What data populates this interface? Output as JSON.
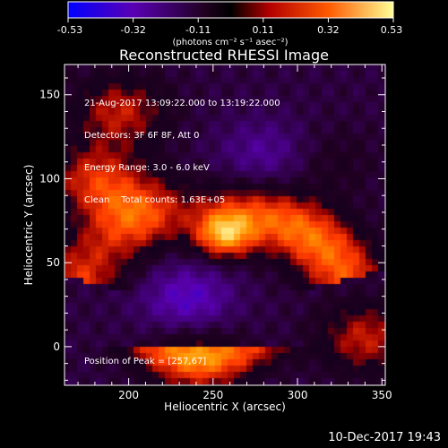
{
  "colorbar": {
    "ticks": [
      "-0.53",
      "-0.32",
      "-0.11",
      "0.11",
      "0.32",
      "0.53"
    ],
    "unit_label": "(photons cm⁻² s⁻¹ asec⁻²)",
    "range": [
      -0.53,
      0.53
    ],
    "colors": [
      "#0000ff",
      "#5a00b4",
      "#200020",
      "#000000",
      "#b40000",
      "#ff5a00",
      "#ffff96"
    ]
  },
  "chart_data": {
    "type": "heatmap",
    "title": "Reconstructed RHESSI Image",
    "xlabel": "Heliocentric X (arcsec)",
    "ylabel": "Heliocentric Y (arcsec)",
    "xlim": [
      162,
      352
    ],
    "ylim": [
      -23,
      168
    ],
    "xticks": [
      200,
      250,
      300,
      350
    ],
    "yticks": [
      0,
      50,
      100,
      150
    ],
    "annotations": [
      "21-Aug-2017 13:09:22.000 to 13:19:22.000",
      "Detectors: 3F 6F 8F, Att 0",
      "Energy Range: 3.0 - 6.0 keV",
      "Clean    Total counts: 1.63E+05"
    ],
    "peak_label": "Position of Peak = [257,67]",
    "peak": [
      257,
      67
    ],
    "grid": false,
    "sources": [
      {
        "x": 257,
        "y": 67,
        "intensity": 0.53
      },
      {
        "x": 205,
        "y": 80,
        "intensity": 0.34
      },
      {
        "x": 180,
        "y": 100,
        "intensity": 0.32
      },
      {
        "x": 195,
        "y": 140,
        "intensity": 0.3
      },
      {
        "x": 340,
        "y": 5,
        "intensity": 0.3
      },
      {
        "x": 240,
        "y": -8,
        "intensity": 0.26
      },
      {
        "x": 320,
        "y": 110,
        "intensity": 0.12
      },
      {
        "x": 235,
        "y": 28,
        "intensity": -0.22
      },
      {
        "x": 280,
        "y": 115,
        "intensity": -0.14
      }
    ]
  },
  "timestamp": "10-Dec-2017 19:43"
}
